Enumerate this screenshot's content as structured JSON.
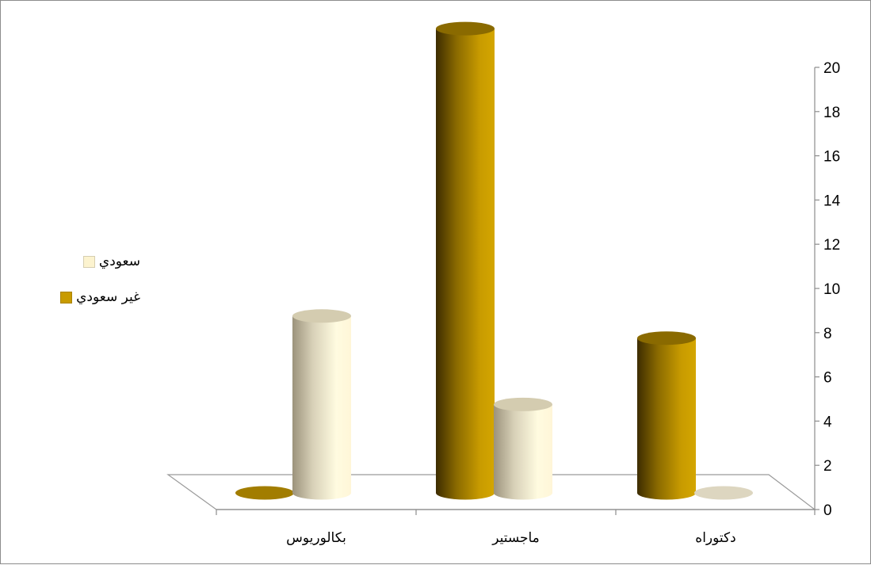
{
  "chart_data": {
    "type": "bar",
    "subtype": "3d-cylinder-clustered",
    "categories": [
      "بكالوريوس",
      "ماجستير",
      "دكتوراه"
    ],
    "series": [
      {
        "name": "غير سعودي",
        "values": [
          0,
          21,
          7
        ],
        "color": "#c89b00"
      },
      {
        "name": "سعودي",
        "values": [
          8,
          4,
          0
        ],
        "color": "#fcf3cf"
      }
    ],
    "ylim": [
      0,
      20
    ],
    "yticks": [
      0,
      2,
      4,
      6,
      8,
      10,
      12,
      14,
      16,
      18,
      20
    ],
    "y_axis_side": "right",
    "legend_position": "left",
    "grid": false,
    "title": "",
    "xlabel": "",
    "ylabel": ""
  }
}
